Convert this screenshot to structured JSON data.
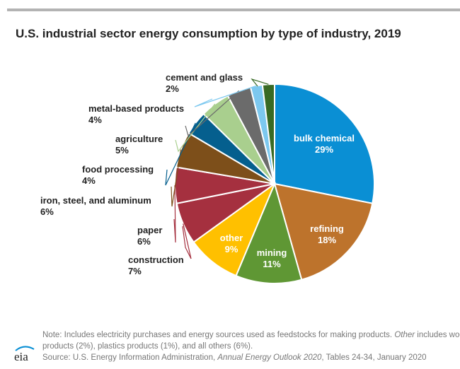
{
  "chart_data": {
    "type": "pie",
    "title": "U.S. industrial sector energy consumption by type of industry, 2019",
    "unit": "%",
    "slices": [
      {
        "label": "bulk chemical",
        "value": 29,
        "value_label": "29%",
        "color": "#0a8fd4"
      },
      {
        "label": "refining",
        "value": 18,
        "value_label": "18%",
        "color": "#bd732c"
      },
      {
        "label": "mining",
        "value": 11,
        "value_label": "11%",
        "color": "#5f9734"
      },
      {
        "label": "other",
        "value": 9,
        "value_label": "9%",
        "color": "#ffc000"
      },
      {
        "label": "construction",
        "value": 7,
        "value_label": "7%",
        "color": "#a5303f"
      },
      {
        "label": "paper",
        "value": 6,
        "value_label": "6%",
        "color": "#a5303f"
      },
      {
        "label": "iron, steel, and aluminum",
        "value": 6,
        "value_label": "6%",
        "color": "#7d4f1a"
      },
      {
        "label": "food processing",
        "value": 4,
        "value_label": "4%",
        "color": "#055f8e"
      },
      {
        "label": "agriculture",
        "value": 5,
        "value_label": "5%",
        "color": "#a9cf8e"
      },
      {
        "label": "metal-based products",
        "value": 4,
        "value_label": "4%",
        "color": "#6b6b6b"
      },
      {
        "label": "cement and glass",
        "value": 2,
        "value_label": "2%",
        "color": "#7cc8ef"
      },
      {
        "label": "wood products",
        "value": 2,
        "value_label": "",
        "color": "#386a24"
      }
    ]
  },
  "footer": {
    "note_prefix": "Note: Includes electricity purchases and energy sources used as feedstocks for making products. ",
    "note_italic": "Other",
    "note_suffix": " includes wood",
    "note_line2": "products (2%), plastics products (1%), and all others (6%).",
    "source_prefix": "Source: U.S. Energy Information Administration, ",
    "source_italic": "Annual Energy Outlook 2020",
    "source_suffix": ", Tables 24-34, January 2020",
    "logo_text": "eia"
  }
}
